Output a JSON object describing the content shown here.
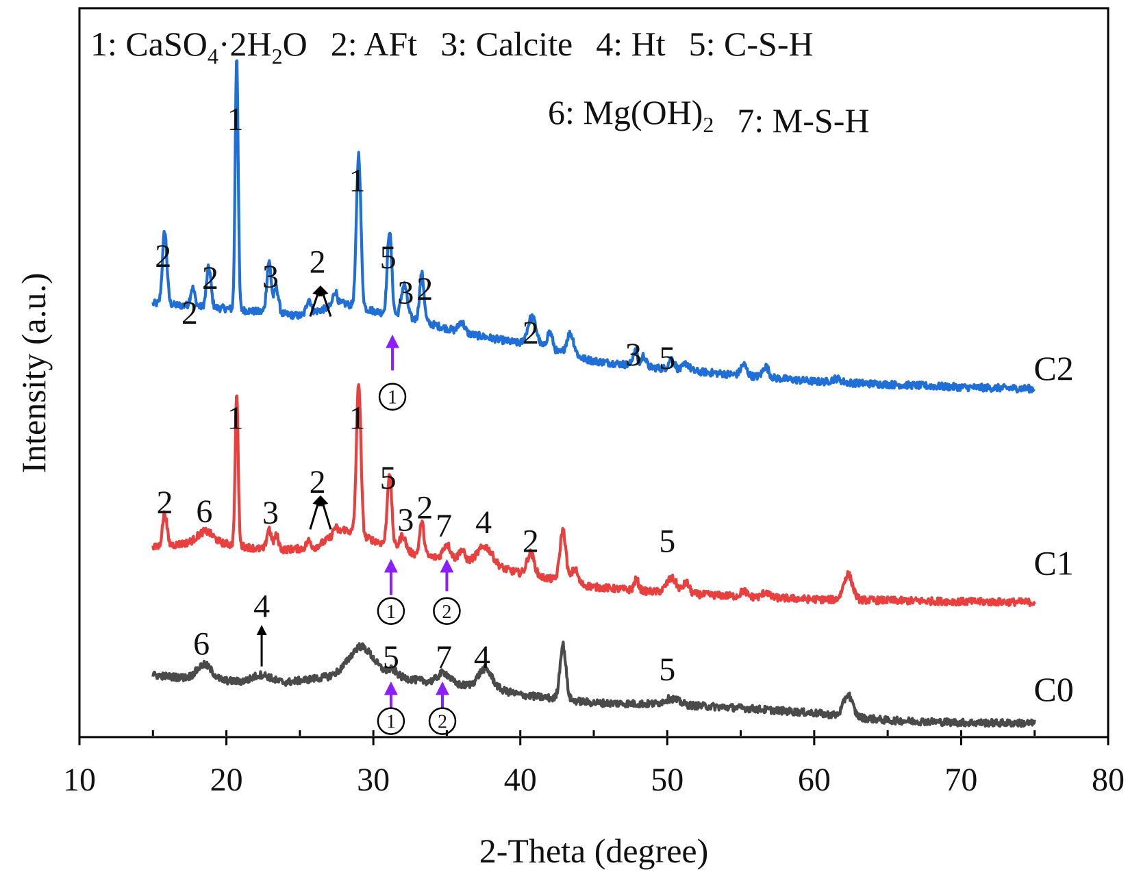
{
  "chart_data": {
    "type": "line",
    "xlabel": "2-Theta (degree)",
    "ylabel": "Intensity (a.u.)",
    "xlim": [
      10,
      80
    ],
    "ylim": [
      0,
      100
    ],
    "xticks": [
      10,
      20,
      30,
      40,
      50,
      60,
      70,
      80
    ],
    "yticks_shown": false,
    "legend": {
      "placement": "top",
      "rows": [
        [
          {
            "num": "1: ",
            "parts": [
              [
                "CaSO",
                ""
              ],
              [
                "4",
                "sub"
              ],
              [
                "·2H",
                ""
              ],
              [
                "2",
                "sub"
              ],
              [
                "O",
                ""
              ]
            ]
          },
          {
            "num": "2: ",
            "parts": [
              [
                "AFt",
                ""
              ]
            ]
          },
          {
            "num": "3: ",
            "parts": [
              [
                "Calcite",
                ""
              ]
            ]
          },
          {
            "num": "4: ",
            "parts": [
              [
                "Ht",
                ""
              ]
            ]
          },
          {
            "num": "5: ",
            "parts": [
              [
                "C-S-H",
                ""
              ]
            ]
          }
        ],
        [
          {
            "num": "6: ",
            "parts": [
              [
                "Mg(OH)",
                ""
              ],
              [
                "2",
                "sub"
              ]
            ]
          },
          {
            "num": "7: ",
            "parts": [
              [
                "M-S-H",
                ""
              ]
            ]
          }
        ]
      ]
    },
    "series": [
      {
        "name": "C2",
        "color": "#1f6fd6",
        "x_start": 15,
        "x_end": 75,
        "baseline": [
          [
            15,
            59.5
          ],
          [
            20,
            58.8
          ],
          [
            25,
            57.8
          ],
          [
            28,
            59.5
          ],
          [
            30,
            58.5
          ],
          [
            33,
            57.2
          ],
          [
            36,
            55.5
          ],
          [
            40,
            54.0
          ],
          [
            45,
            51.6
          ],
          [
            50,
            50.5
          ],
          [
            60,
            48.8
          ],
          [
            70,
            48.0
          ],
          [
            75,
            47.8
          ]
        ],
        "peaks": [
          {
            "x": 15.8,
            "h": 10.0,
            "w": 0.15
          },
          {
            "x": 17.7,
            "h": 2.5,
            "w": 0.15
          },
          {
            "x": 18.8,
            "h": 5.5,
            "w": 0.15
          },
          {
            "x": 20.7,
            "h": 35.0,
            "w": 0.1
          },
          {
            "x": 22.9,
            "h": 7.0,
            "w": 0.15
          },
          {
            "x": 23.4,
            "h": 3.5,
            "w": 0.15
          },
          {
            "x": 25.6,
            "h": 2.0,
            "w": 0.15
          },
          {
            "x": 27.4,
            "h": 2.0,
            "w": 0.15
          },
          {
            "x": 29.0,
            "h": 21.0,
            "w": 0.15
          },
          {
            "x": 31.1,
            "h": 11.5,
            "w": 0.15
          },
          {
            "x": 32.1,
            "h": 4.5,
            "w": 0.2
          },
          {
            "x": 33.3,
            "h": 6.5,
            "w": 0.15
          },
          {
            "x": 36.0,
            "h": 1.5,
            "w": 0.2
          },
          {
            "x": 40.8,
            "h": 4.0,
            "w": 0.3
          },
          {
            "x": 42.0,
            "h": 2.5,
            "w": 0.2
          },
          {
            "x": 43.4,
            "h": 3.0,
            "w": 0.25
          },
          {
            "x": 47.8,
            "h": 2.0,
            "w": 0.15
          },
          {
            "x": 48.4,
            "h": 1.5,
            "w": 0.15
          },
          {
            "x": 50.3,
            "h": 1.5,
            "w": 0.2
          },
          {
            "x": 51.3,
            "h": 1.0,
            "w": 0.2
          },
          {
            "x": 55.2,
            "h": 1.5,
            "w": 0.2
          },
          {
            "x": 56.7,
            "h": 1.5,
            "w": 0.2
          },
          {
            "x": 61.5,
            "h": 0.5,
            "w": 0.3
          }
        ]
      },
      {
        "name": "C1",
        "color": "#e8403f",
        "x_start": 15,
        "x_end": 75,
        "baseline": [
          [
            15,
            26.0
          ],
          [
            18,
            26.8
          ],
          [
            20,
            26.5
          ],
          [
            23,
            25.6
          ],
          [
            26,
            26.0
          ],
          [
            28,
            28.5
          ],
          [
            30,
            27.0
          ],
          [
            33,
            25.0
          ],
          [
            36,
            24.2
          ],
          [
            38,
            23.5
          ],
          [
            40,
            22.5
          ],
          [
            45,
            20.6
          ],
          [
            50,
            19.8
          ],
          [
            55,
            19.3
          ],
          [
            60,
            18.9
          ],
          [
            70,
            18.6
          ],
          [
            75,
            18.5
          ]
        ],
        "peaks": [
          {
            "x": 15.8,
            "h": 4.5,
            "w": 0.15
          },
          {
            "x": 18.6,
            "h": 1.5,
            "w": 0.5
          },
          {
            "x": 20.7,
            "h": 21.0,
            "w": 0.1
          },
          {
            "x": 22.9,
            "h": 3.0,
            "w": 0.15
          },
          {
            "x": 23.4,
            "h": 2.0,
            "w": 0.15
          },
          {
            "x": 25.6,
            "h": 1.0,
            "w": 0.15
          },
          {
            "x": 27.4,
            "h": 1.0,
            "w": 0.15
          },
          {
            "x": 29.0,
            "h": 21.0,
            "w": 0.15
          },
          {
            "x": 31.1,
            "h": 10.0,
            "w": 0.15
          },
          {
            "x": 32.0,
            "h": 2.0,
            "w": 0.2
          },
          {
            "x": 33.3,
            "h": 4.5,
            "w": 0.15
          },
          {
            "x": 35.0,
            "h": 2.0,
            "w": 0.25
          },
          {
            "x": 36.0,
            "h": 1.5,
            "w": 0.2
          },
          {
            "x": 37.6,
            "h": 2.5,
            "w": 0.5
          },
          {
            "x": 40.7,
            "h": 3.0,
            "w": 0.25
          },
          {
            "x": 42.9,
            "h": 7.0,
            "w": 0.2
          },
          {
            "x": 43.7,
            "h": 2.0,
            "w": 0.2
          },
          {
            "x": 47.9,
            "h": 1.5,
            "w": 0.15
          },
          {
            "x": 50.3,
            "h": 2.0,
            "w": 0.35
          },
          {
            "x": 51.3,
            "h": 1.5,
            "w": 0.2
          },
          {
            "x": 55.2,
            "h": 0.8,
            "w": 0.2
          },
          {
            "x": 56.7,
            "h": 0.8,
            "w": 0.2
          },
          {
            "x": 62.3,
            "h": 3.5,
            "w": 0.3
          }
        ]
      },
      {
        "name": "C0",
        "color": "#4a4a4a",
        "x_start": 15,
        "x_end": 75,
        "baseline": [
          [
            15,
            8.5
          ],
          [
            18,
            8.0
          ],
          [
            21,
            7.6
          ],
          [
            24,
            7.5
          ],
          [
            27,
            8.3
          ],
          [
            29,
            9.5
          ],
          [
            31,
            8.5
          ],
          [
            33,
            7.8
          ],
          [
            35,
            7.3
          ],
          [
            38,
            6.8
          ],
          [
            40,
            5.8
          ],
          [
            45,
            4.7
          ],
          [
            50,
            4.5
          ],
          [
            55,
            4.0
          ],
          [
            60,
            3.3
          ],
          [
            65,
            2.3
          ],
          [
            70,
            2.0
          ],
          [
            75,
            1.9
          ]
        ],
        "peaks": [
          {
            "x": 18.5,
            "h": 2.0,
            "w": 0.5
          },
          {
            "x": 22.4,
            "h": 1.0,
            "w": 0.6
          },
          {
            "x": 29.2,
            "h": 3.0,
            "w": 0.8
          },
          {
            "x": 31.3,
            "h": 0.8,
            "w": 0.3
          },
          {
            "x": 34.8,
            "h": 1.5,
            "w": 0.4
          },
          {
            "x": 37.6,
            "h": 2.5,
            "w": 0.45
          },
          {
            "x": 42.9,
            "h": 7.5,
            "w": 0.2
          },
          {
            "x": 50.3,
            "h": 0.8,
            "w": 0.5
          },
          {
            "x": 62.3,
            "h": 3.0,
            "w": 0.3
          }
        ]
      }
    ],
    "series_labels": [
      {
        "text": "C2",
        "x": 76.3,
        "y": 49.0
      },
      {
        "text": "C1",
        "x": 76.3,
        "y": 22.3
      },
      {
        "text": "C0",
        "x": 76.3,
        "y": 5.0
      }
    ],
    "peak_labels": [
      {
        "text": "2",
        "x": 15.7,
        "y": 64.5
      },
      {
        "text": "2",
        "x": 17.5,
        "y": 56.7
      },
      {
        "text": "2",
        "x": 18.9,
        "y": 61.5
      },
      {
        "text": "1",
        "x": 20.6,
        "y": 83.3
      },
      {
        "text": "3",
        "x": 23.0,
        "y": 61.7
      },
      {
        "text": "2",
        "x": 26.2,
        "y": 63.7
      },
      {
        "text": "1",
        "x": 28.9,
        "y": 74.9
      },
      {
        "text": "5",
        "x": 31.0,
        "y": 64.3
      },
      {
        "text": "3",
        "x": 32.2,
        "y": 59.5
      },
      {
        "text": "2",
        "x": 33.5,
        "y": 60.0
      },
      {
        "text": "2",
        "x": 40.7,
        "y": 54.0
      },
      {
        "text": "3",
        "x": 47.7,
        "y": 51.0
      },
      {
        "text": "5",
        "x": 50.0,
        "y": 50.5
      },
      {
        "text": "2",
        "x": 15.8,
        "y": 30.7
      },
      {
        "text": "6",
        "x": 18.5,
        "y": 29.5
      },
      {
        "text": "1",
        "x": 20.6,
        "y": 42.3
      },
      {
        "text": "3",
        "x": 23.0,
        "y": 29.3
      },
      {
        "text": "2",
        "x": 26.2,
        "y": 33.5
      },
      {
        "text": "1",
        "x": 28.9,
        "y": 42.3
      },
      {
        "text": "5",
        "x": 31.0,
        "y": 34.1
      },
      {
        "text": "3",
        "x": 32.2,
        "y": 28.3
      },
      {
        "text": "2",
        "x": 33.5,
        "y": 30.0
      },
      {
        "text": "7",
        "x": 34.8,
        "y": 27.5
      },
      {
        "text": "4",
        "x": 37.5,
        "y": 28.0
      },
      {
        "text": "2",
        "x": 40.7,
        "y": 25.4
      },
      {
        "text": "5",
        "x": 50.0,
        "y": 25.4
      },
      {
        "text": "6",
        "x": 18.3,
        "y": 11.3
      },
      {
        "text": "4",
        "x": 22.4,
        "y": 16.5
      },
      {
        "text": "5",
        "x": 31.2,
        "y": 9.5
      },
      {
        "text": "7",
        "x": 34.8,
        "y": 9.5
      },
      {
        "text": "4",
        "x": 37.4,
        "y": 9.5
      },
      {
        "text": "5",
        "x": 50.0,
        "y": 7.8
      }
    ],
    "black_arrows": [
      {
        "x1": 25.7,
        "y1": 57.7,
        "x2": 26.3,
        "y2": 61.3
      },
      {
        "x1": 27.1,
        "y1": 57.7,
        "x2": 26.5,
        "y2": 61.3
      },
      {
        "x1": 25.7,
        "y1": 28.5,
        "x2": 26.3,
        "y2": 32.5
      },
      {
        "x1": 27.1,
        "y1": 28.5,
        "x2": 26.5,
        "y2": 32.5
      },
      {
        "x1": 22.4,
        "y1": 9.7,
        "x2": 22.4,
        "y2": 14.7
      }
    ],
    "purple_arrows": [
      {
        "x": 31.3,
        "y1": 50.3,
        "y2": 54.3,
        "marker": "1",
        "my": 46.7
      },
      {
        "x": 31.2,
        "y1": 19.5,
        "y2": 23.5,
        "marker": "1",
        "my": 17.3
      },
      {
        "x": 35.0,
        "y1": 20.0,
        "y2": 23.5,
        "marker": "2",
        "my": 17.3
      },
      {
        "x": 31.2,
        "y1": 2.7,
        "y2": 6.7,
        "marker": "1",
        "my": 2.2
      },
      {
        "x": 34.7,
        "y1": 3.0,
        "y2": 6.7,
        "marker": "2",
        "my": 2.2
      }
    ],
    "colors": {
      "arrow_purple": "#8b1fff",
      "axis": "#000000"
    }
  }
}
